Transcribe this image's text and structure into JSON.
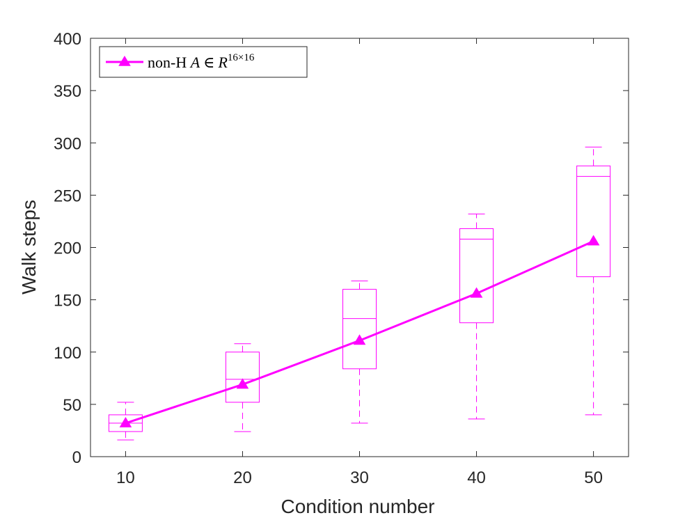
{
  "chart_data": {
    "type": "line",
    "title": "",
    "xlabel": "Condition number",
    "ylabel": "Walk steps",
    "xlim": [
      7,
      53
    ],
    "ylim": [
      0,
      400
    ],
    "x_ticks": [
      10,
      20,
      30,
      40,
      50
    ],
    "y_ticks": [
      0,
      50,
      100,
      150,
      200,
      250,
      300,
      350,
      400
    ],
    "grid": false,
    "legend": {
      "position": "top-left",
      "label_prefix": "non-H ",
      "label_var": "A",
      "label_in": "∈",
      "label_R": "R",
      "label_sup": "16×16"
    },
    "series": [
      {
        "name": "non-H A ∈ R^16×16",
        "color": "#ff00ff",
        "marker": "triangle",
        "x": [
          10,
          20,
          30,
          40,
          50
        ],
        "values": [
          32,
          69,
          111,
          156,
          206
        ]
      }
    ],
    "boxplots": [
      {
        "x": 10,
        "whisker_low": 16,
        "q1": 24,
        "median": 32,
        "q3": 40,
        "whisker_high": 52
      },
      {
        "x": 20,
        "whisker_low": 24,
        "q1": 52,
        "median": 74,
        "q3": 100,
        "whisker_high": 108
      },
      {
        "x": 30,
        "whisker_low": 32,
        "q1": 84,
        "median": 132,
        "q3": 160,
        "whisker_high": 168
      },
      {
        "x": 40,
        "whisker_low": 36,
        "q1": 128,
        "median": 208,
        "q3": 218,
        "whisker_high": 232
      },
      {
        "x": 50,
        "whisker_low": 40,
        "q1": 172,
        "median": 268,
        "q3": 278,
        "whisker_high": 296
      }
    ]
  }
}
